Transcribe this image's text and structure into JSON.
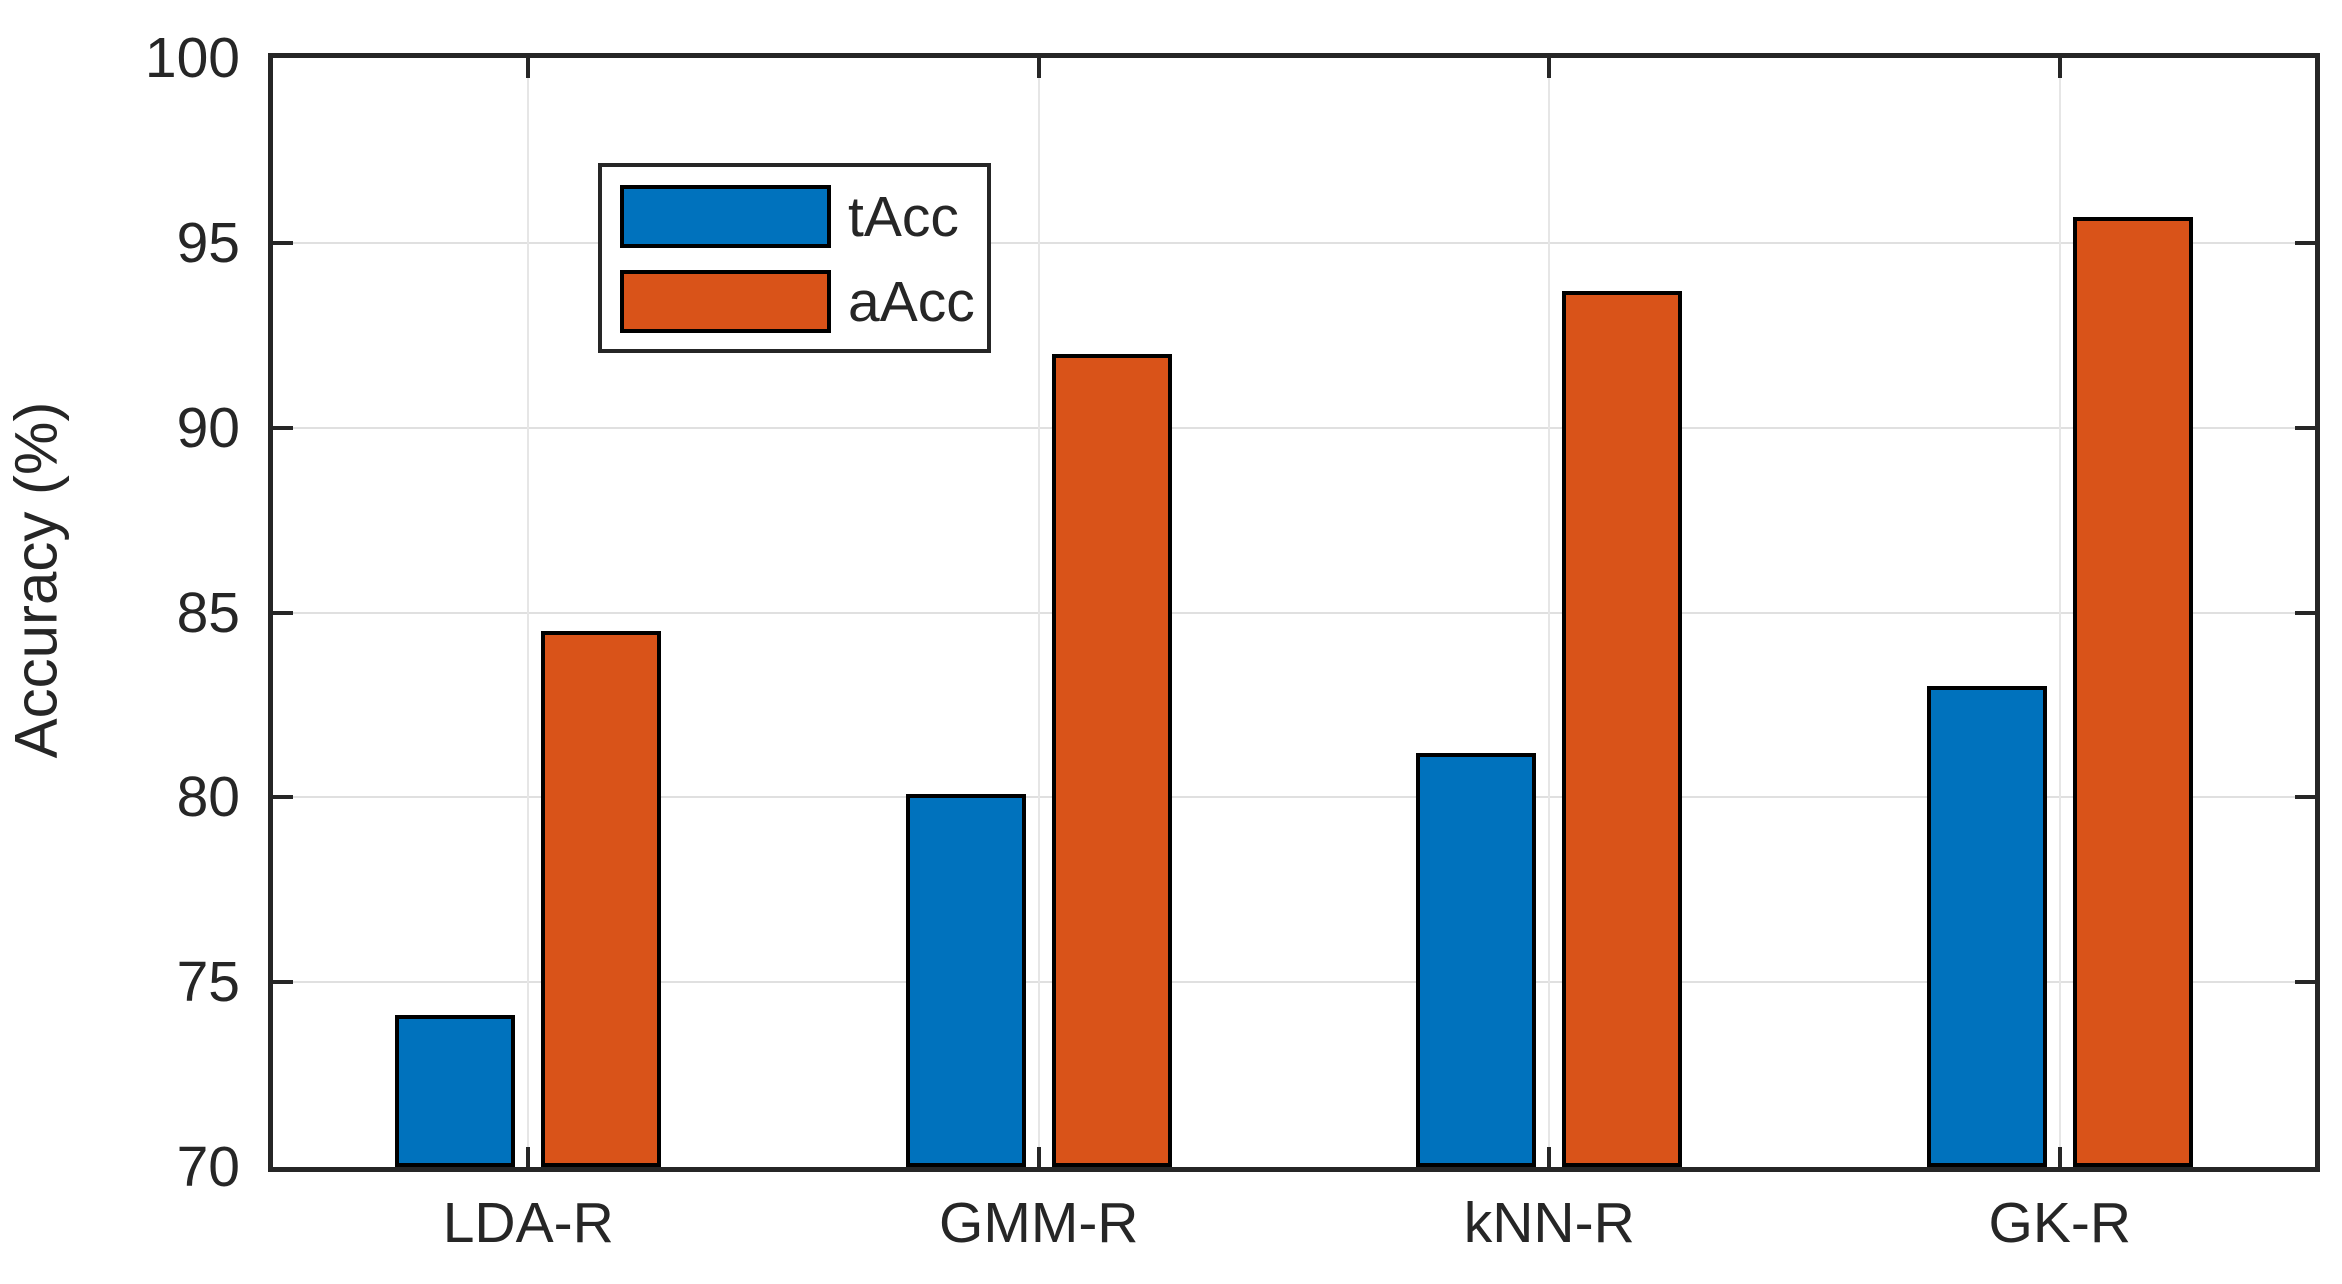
{
  "chart_data": {
    "type": "bar",
    "title": "",
    "categories": [
      "LDA-R",
      "GMM-R",
      "kNN-R",
      "GK-R"
    ],
    "series": [
      {
        "name": "tAcc",
        "color": "#0072BD",
        "values": [
          74.1,
          80.1,
          81.2,
          83.0
        ]
      },
      {
        "name": "aAcc",
        "color": "#D95319",
        "values": [
          84.5,
          92.0,
          93.7,
          95.7
        ]
      }
    ],
    "xlabel": "",
    "ylabel": "Accuracy (%)",
    "ylim": [
      70,
      100
    ],
    "yticks": [
      70,
      75,
      80,
      85,
      90,
      95,
      100
    ],
    "grid": true,
    "legend_position": "top-left",
    "axis_color": "#262626",
    "grid_color": "#e0e0e0",
    "bar_edge_color": "#000000",
    "background_color": "#ffffff"
  }
}
